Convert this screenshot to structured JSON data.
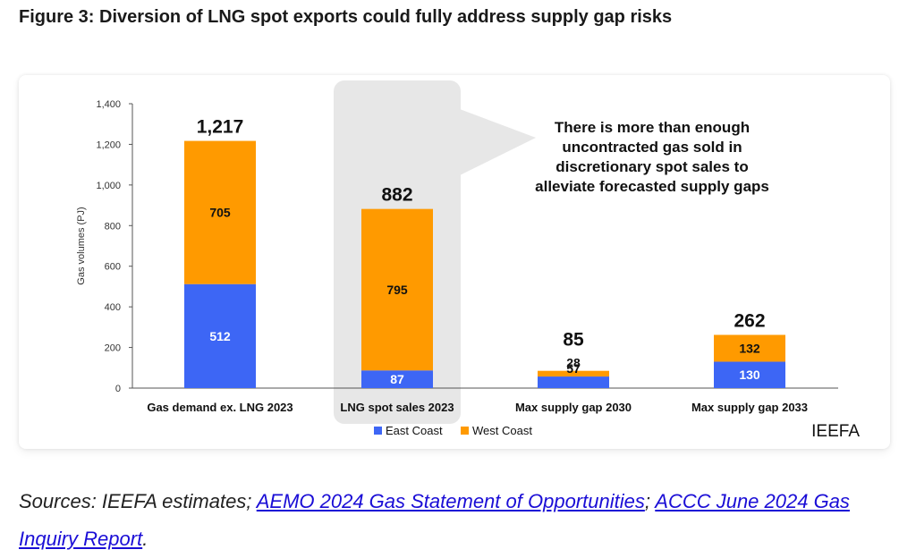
{
  "figure": {
    "title": "Figure 3: Diversion of LNG spot exports could fully address supply gap risks",
    "watermark": "IEEFA",
    "annotation_lines": [
      "There is more than enough",
      "uncontracted gas sold in",
      "discretionary spot sales to",
      "alleviate forecasted supply gaps"
    ]
  },
  "chart_data": {
    "type": "bar",
    "stacked": true,
    "categories": [
      "Gas demand ex. LNG 2023",
      "LNG spot sales 2023",
      "Max supply gap 2030",
      "Max supply gap 2033"
    ],
    "series": [
      {
        "name": "East Coast",
        "values": [
          512,
          87,
          57,
          130
        ],
        "color": "#3d66f5"
      },
      {
        "name": "West Coast",
        "values": [
          705,
          795,
          28,
          132
        ],
        "color": "#ff9a00"
      }
    ],
    "totals": [
      1217,
      882,
      85,
      262
    ],
    "total_labels": [
      "1,217",
      "882",
      "85",
      "262"
    ],
    "ylabel": "Gas volumes (PJ)",
    "ylim": [
      0,
      1400
    ],
    "yticks": [
      0,
      200,
      400,
      600,
      800,
      1000,
      1200,
      1400
    ],
    "ytick_labels": [
      "0",
      "200",
      "400",
      "600",
      "800",
      "1,000",
      "1,200",
      "1,400"
    ],
    "highlighted_category": "LNG spot sales 2023",
    "legend_position": "bottom",
    "grid": false
  },
  "sources": {
    "prefix": "Sources: IEEFA estimates; ",
    "link1": "AEMO 2024 Gas Statement of Opportunities",
    "separator": "; ",
    "link2": "ACCC June 2024 Gas Inquiry Report",
    "suffix": "."
  }
}
